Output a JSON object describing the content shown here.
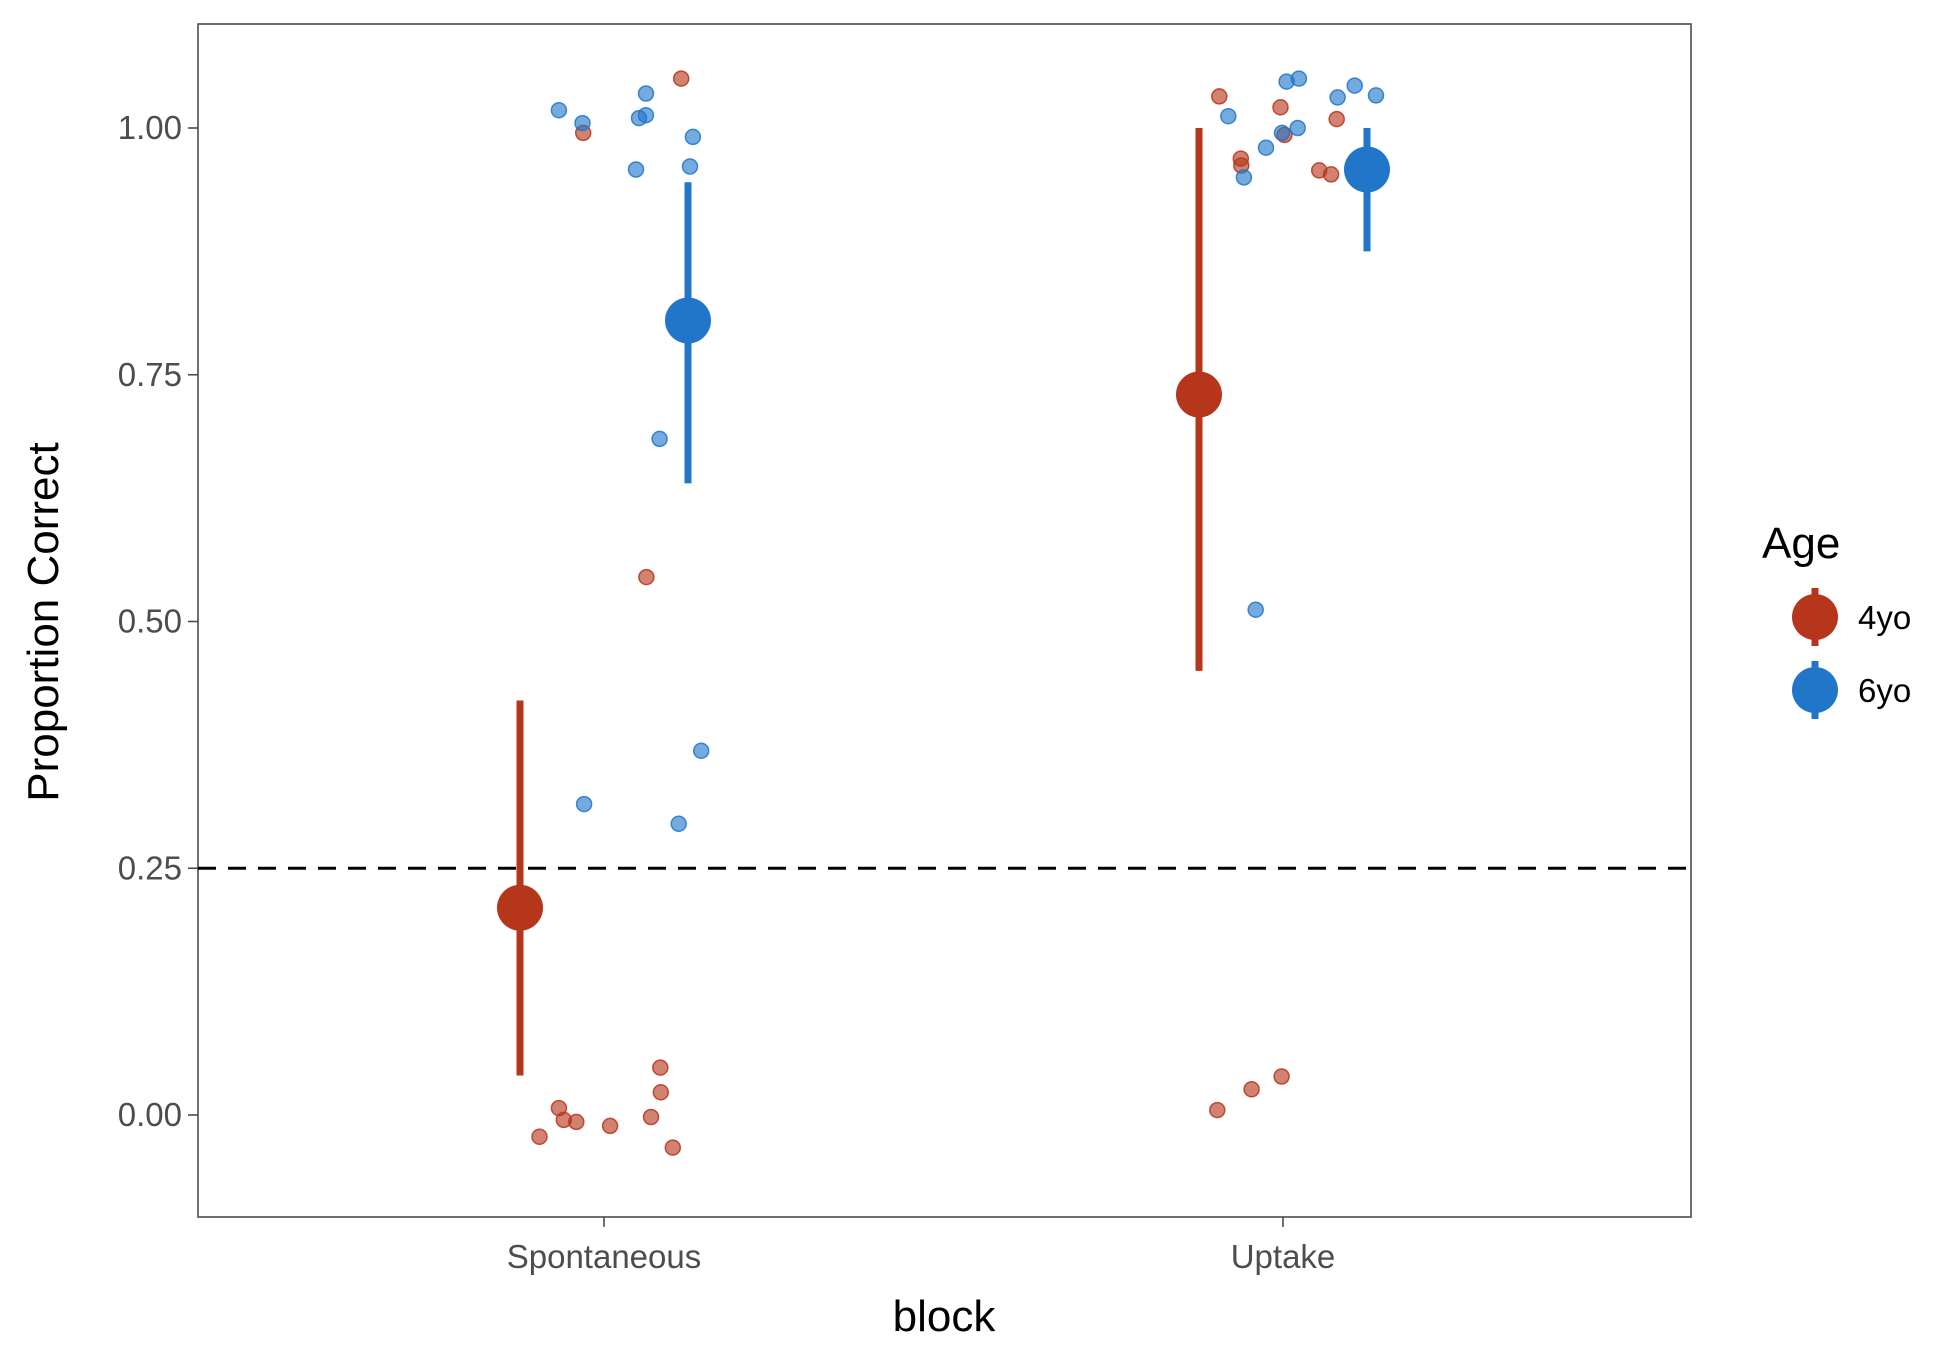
{
  "chart_data": {
    "type": "scatter",
    "title": "",
    "xlabel": "block",
    "ylabel": "Proportion Correct",
    "categories": [
      "Spontaneous",
      "Uptake"
    ],
    "ylim": [
      -0.1,
      1.1
    ],
    "y_ticks": [
      "0.00",
      "0.25",
      "0.50",
      "0.75",
      "1.00"
    ],
    "y_tick_values": [
      0,
      0.25,
      0.5,
      0.75,
      1.0
    ],
    "grid": false,
    "reference_line": {
      "y": 0.25,
      "style": "dashed"
    },
    "legend": {
      "title": "Age",
      "position": "right"
    },
    "series": [
      {
        "name": "4yo",
        "color": "#B5361A",
        "summary": [
          {
            "category": "Spontaneous",
            "mean": 0.21,
            "lower": 0.04,
            "upper": 0.42
          },
          {
            "category": "Uptake",
            "mean": 0.73,
            "lower": 0.45,
            "upper": 1.0
          }
        ],
        "points": [
          {
            "category": "Spontaneous",
            "y": 1.05
          },
          {
            "category": "Spontaneous",
            "y": 0.995
          },
          {
            "category": "Spontaneous",
            "y": 0.545
          },
          {
            "category": "Spontaneous",
            "y": 0.048
          },
          {
            "category": "Spontaneous",
            "y": 0.023
          },
          {
            "category": "Spontaneous",
            "y": 0.007
          },
          {
            "category": "Spontaneous",
            "y": -0.002
          },
          {
            "category": "Spontaneous",
            "y": -0.005
          },
          {
            "category": "Spontaneous",
            "y": -0.007
          },
          {
            "category": "Spontaneous",
            "y": -0.011
          },
          {
            "category": "Spontaneous",
            "y": -0.022
          },
          {
            "category": "Spontaneous",
            "y": -0.033
          },
          {
            "category": "Uptake",
            "y": 1.032
          },
          {
            "category": "Uptake",
            "y": 1.021
          },
          {
            "category": "Uptake",
            "y": 1.009
          },
          {
            "category": "Uptake",
            "y": 0.993
          },
          {
            "category": "Uptake",
            "y": 0.969
          },
          {
            "category": "Uptake",
            "y": 0.962
          },
          {
            "category": "Uptake",
            "y": 0.957
          },
          {
            "category": "Uptake",
            "y": 0.953
          },
          {
            "category": "Uptake",
            "y": 0.039
          },
          {
            "category": "Uptake",
            "y": 0.026
          },
          {
            "category": "Uptake",
            "y": 0.005
          }
        ]
      },
      {
        "name": "6yo",
        "color": "#2176C9",
        "summary": [
          {
            "category": "Spontaneous",
            "mean": 0.805,
            "lower": 0.64,
            "upper": 0.945
          },
          {
            "category": "Uptake",
            "mean": 0.958,
            "lower": 0.875,
            "upper": 1.0
          }
        ],
        "points": [
          {
            "category": "Spontaneous",
            "y": 1.018
          },
          {
            "category": "Spontaneous",
            "y": 1.005
          },
          {
            "category": "Spontaneous",
            "y": 1.01
          },
          {
            "category": "Spontaneous",
            "y": 1.013
          },
          {
            "category": "Spontaneous",
            "y": 1.035
          },
          {
            "category": "Spontaneous",
            "y": 0.991
          },
          {
            "category": "Spontaneous",
            "y": 0.958
          },
          {
            "category": "Spontaneous",
            "y": 0.961
          },
          {
            "category": "Spontaneous",
            "y": 0.685
          },
          {
            "category": "Spontaneous",
            "y": 0.369
          },
          {
            "category": "Spontaneous",
            "y": 0.315
          },
          {
            "category": "Spontaneous",
            "y": 0.295
          },
          {
            "category": "Uptake",
            "y": 1.033
          },
          {
            "category": "Uptake",
            "y": 1.012
          },
          {
            "category": "Uptake",
            "y": 0.995
          },
          {
            "category": "Uptake",
            "y": 0.963
          },
          {
            "category": "Uptake",
            "y": 1.043
          },
          {
            "category": "Uptake",
            "y": 1.05
          },
          {
            "category": "Uptake",
            "y": 1.0
          },
          {
            "category": "Uptake",
            "y": 0.95
          },
          {
            "category": "Uptake",
            "y": 1.047
          },
          {
            "category": "Uptake",
            "y": 1.031
          },
          {
            "category": "Uptake",
            "y": 0.98
          },
          {
            "category": "Uptake",
            "y": 0.512
          }
        ]
      }
    ]
  }
}
